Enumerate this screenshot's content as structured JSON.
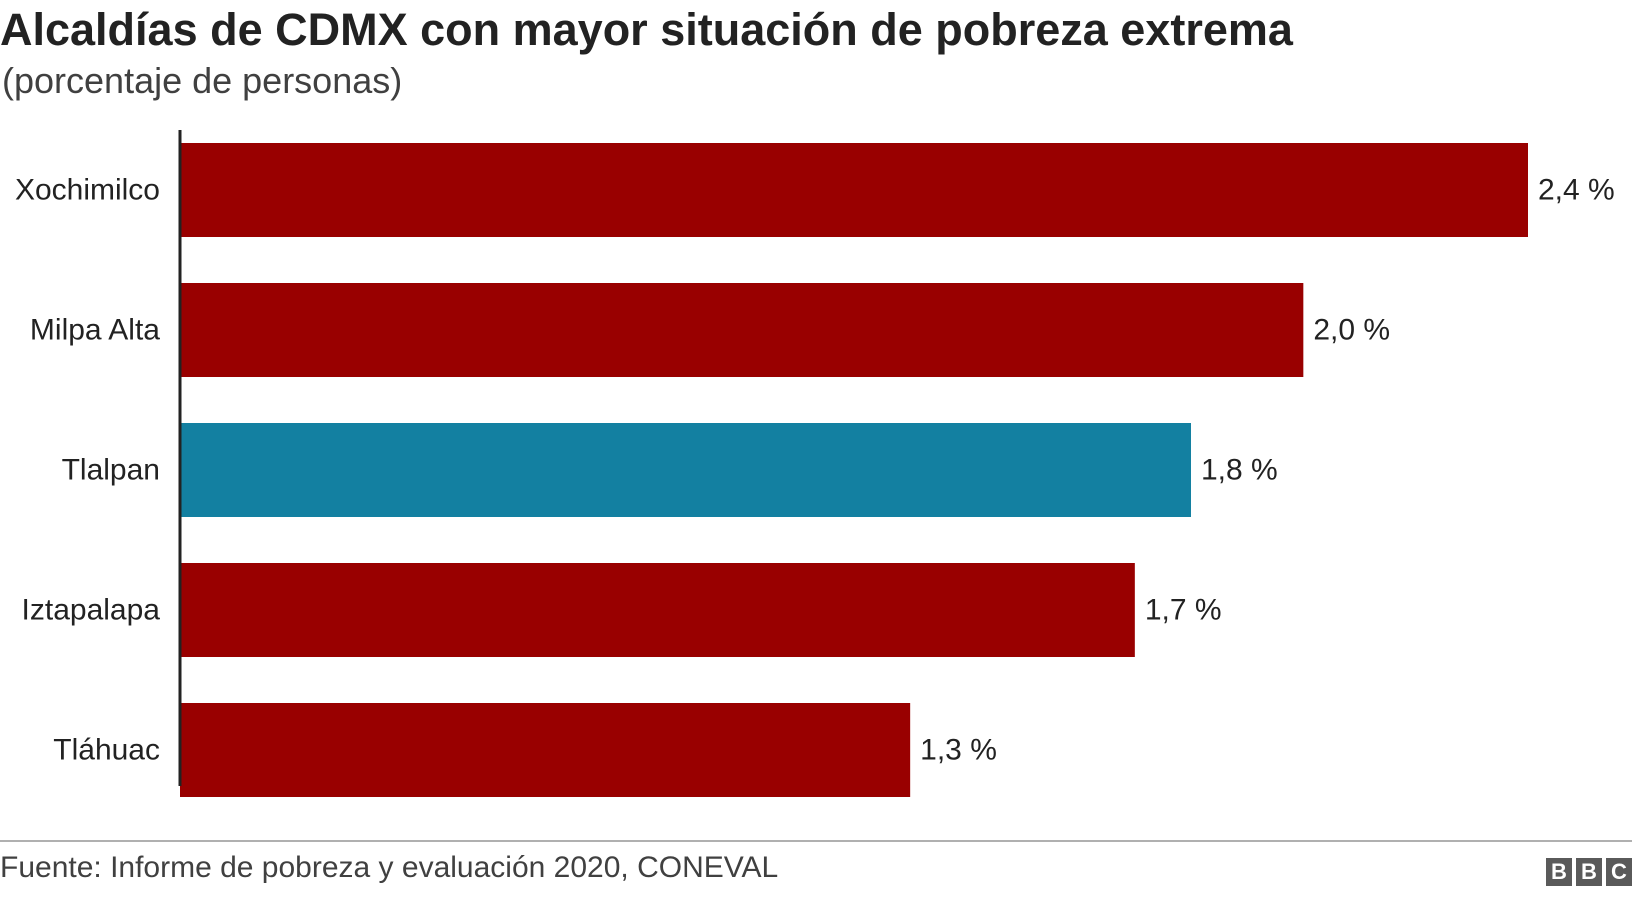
{
  "header": {
    "title": "Alcaldías de CDMX con mayor situación de pobreza extrema",
    "subtitle": "(porcentaje de personas)"
  },
  "footer": {
    "source": "Fuente: Informe de pobreza y evaluación 2020, CONEVAL",
    "logo_letters": [
      "B",
      "B",
      "C"
    ]
  },
  "chart_data": {
    "type": "bar",
    "orientation": "horizontal",
    "title": "Alcaldías de CDMX con mayor situación de pobreza extrema",
    "subtitle": "(porcentaje de personas)",
    "categories": [
      "Xochimilco",
      "Milpa Alta",
      "Tlalpan",
      "Iztapalapa",
      "Tláhuac"
    ],
    "values": [
      2.4,
      2.0,
      1.8,
      1.7,
      1.3
    ],
    "value_labels": [
      "2,4 %",
      "2,0 %",
      "1,8 %",
      "1,7 %",
      "1,3 %"
    ],
    "bar_colors": [
      "#990000",
      "#990000",
      "#1380a1",
      "#990000",
      "#990000"
    ],
    "xlim": [
      0,
      2.4
    ],
    "grid": false,
    "legend": "none"
  }
}
